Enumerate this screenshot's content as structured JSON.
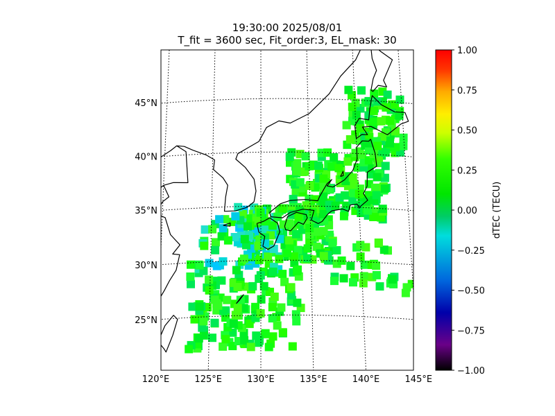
{
  "title": {
    "line1": "19:30:00 2025/08/01",
    "line2": "T_fit = 3600 sec, Fit_order:3, EL_mask: 30"
  },
  "map": {
    "projection": "lambert-conformal",
    "lon_range": [
      120,
      145
    ],
    "lat_range": [
      20,
      49
    ],
    "graticule_style": "dotted",
    "lat_ticks": [
      {
        "value": 25,
        "label": "25°N"
      },
      {
        "value": 30,
        "label": "30°N"
      },
      {
        "value": 35,
        "label": "35°N"
      },
      {
        "value": 40,
        "label": "40°N"
      },
      {
        "value": 45,
        "label": "45°N"
      }
    ],
    "lon_ticks": [
      {
        "value": 120,
        "label": "120°E"
      },
      {
        "value": 125,
        "label": "125°E"
      },
      {
        "value": 130,
        "label": "130°E"
      },
      {
        "value": 135,
        "label": "135°E"
      },
      {
        "value": 140,
        "label": "140°E"
      },
      {
        "value": 145,
        "label": "145°E"
      }
    ],
    "coastline_color": "#000000"
  },
  "colorbar": {
    "label": "dTEC (TECU)",
    "range": [
      -1.0,
      1.0
    ],
    "colormap": "nipy_spectral-like",
    "ticks": [
      {
        "value": 1.0,
        "label": "1.00"
      },
      {
        "value": 0.75,
        "label": "0.75"
      },
      {
        "value": 0.5,
        "label": "0.50"
      },
      {
        "value": 0.25,
        "label": "0.25"
      },
      {
        "value": 0.0,
        "label": "0.00"
      },
      {
        "value": -0.25,
        "label": "−0.25"
      },
      {
        "value": -0.5,
        "label": "−0.50"
      },
      {
        "value": -0.75,
        "label": "−0.75"
      },
      {
        "value": -1.0,
        "label": "−1.00"
      }
    ]
  }
}
